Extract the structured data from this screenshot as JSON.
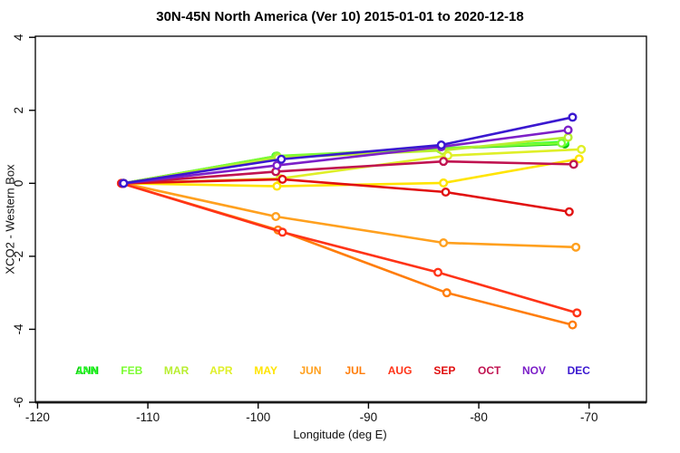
{
  "chart_data": {
    "type": "line",
    "title": "30N-45N North America (Ver 10)   2015-01-01 to 2020-12-18",
    "xlabel": "Longitude (deg E)",
    "ylabel": "XCO2 - Western Box",
    "xlim": [
      -120.2,
      -64.8
    ],
    "ylim": [
      -6,
      4.03
    ],
    "x_ticks": [
      -120,
      -110,
      -100,
      -90,
      -80,
      -70
    ],
    "y_ticks": [
      4,
      2,
      0,
      -2,
      -4,
      -6
    ],
    "grid": false,
    "legend_position": "inside-bottom",
    "marker": "open-circle",
    "series": [
      {
        "name": "ANN",
        "color": "#00C300",
        "points": [
          {
            "x": -112.2,
            "y": 0
          },
          {
            "x": -98.4,
            "y": 0.74
          },
          {
            "x": -83.5,
            "y": 0.95
          },
          {
            "x": -72.2,
            "y": 1.08
          }
        ]
      },
      {
        "name": "JAN",
        "color": "#30FF30",
        "points": [
          {
            "x": -112.2,
            "y": 0
          },
          {
            "x": -98.4,
            "y": 0.73
          },
          {
            "x": -83.5,
            "y": 0.94
          },
          {
            "x": -72.2,
            "y": 1.14
          }
        ]
      },
      {
        "name": "FEB",
        "color": "#7CFC33",
        "points": [
          {
            "x": -112.2,
            "y": 0
          },
          {
            "x": -98.3,
            "y": 0.75
          },
          {
            "x": -83.6,
            "y": 0.96
          },
          {
            "x": -72.5,
            "y": 1.1
          }
        ]
      },
      {
        "name": "MAR",
        "color": "#B8EE30",
        "points": [
          {
            "x": -112.2,
            "y": 0
          },
          {
            "x": -98.2,
            "y": 0.7
          },
          {
            "x": -83.3,
            "y": 0.9
          },
          {
            "x": -71.9,
            "y": 1.26
          }
        ]
      },
      {
        "name": "APR",
        "color": "#DFEF28",
        "points": [
          {
            "x": -112.2,
            "y": 0
          },
          {
            "x": -98.0,
            "y": 0.13
          },
          {
            "x": -82.8,
            "y": 0.76
          },
          {
            "x": -70.7,
            "y": 0.93
          }
        ]
      },
      {
        "name": "MAY",
        "color": "#FFE400",
        "points": [
          {
            "x": -112.2,
            "y": 0
          },
          {
            "x": -98.3,
            "y": -0.08
          },
          {
            "x": -83.2,
            "y": 0.01
          },
          {
            "x": -70.9,
            "y": 0.67
          }
        ]
      },
      {
        "name": "JUN",
        "color": "#FFA01E",
        "points": [
          {
            "x": -112.2,
            "y": 0
          },
          {
            "x": -98.4,
            "y": -0.91
          },
          {
            "x": -83.2,
            "y": -1.63
          },
          {
            "x": -71.2,
            "y": -1.75
          }
        ]
      },
      {
        "name": "JUL",
        "color": "#FF7D0A",
        "points": [
          {
            "x": -112.4,
            "y": 0
          },
          {
            "x": -98.2,
            "y": -1.28
          },
          {
            "x": -82.9,
            "y": -3.0
          },
          {
            "x": -71.5,
            "y": -3.88
          }
        ]
      },
      {
        "name": "AUG",
        "color": "#FF3317",
        "points": [
          {
            "x": -112.4,
            "y": 0
          },
          {
            "x": -97.8,
            "y": -1.34
          },
          {
            "x": -83.7,
            "y": -2.44
          },
          {
            "x": -71.1,
            "y": -3.55
          }
        ]
      },
      {
        "name": "SEP",
        "color": "#E11010",
        "points": [
          {
            "x": -112.3,
            "y": 0
          },
          {
            "x": -97.8,
            "y": 0.11
          },
          {
            "x": -83.0,
            "y": -0.24
          },
          {
            "x": -71.8,
            "y": -0.78
          }
        ]
      },
      {
        "name": "OCT",
        "color": "#C01350",
        "points": [
          {
            "x": -112.3,
            "y": 0
          },
          {
            "x": -98.4,
            "y": 0.32
          },
          {
            "x": -83.2,
            "y": 0.6
          },
          {
            "x": -71.4,
            "y": 0.52
          }
        ]
      },
      {
        "name": "NOV",
        "color": "#7C1FC8",
        "points": [
          {
            "x": -112.2,
            "y": 0
          },
          {
            "x": -98.3,
            "y": 0.49
          },
          {
            "x": -83.4,
            "y": 1.0
          },
          {
            "x": -71.9,
            "y": 1.46
          }
        ]
      },
      {
        "name": "DEC",
        "color": "#3A18D0",
        "points": [
          {
            "x": -112.2,
            "y": 0
          },
          {
            "x": -97.9,
            "y": 0.66
          },
          {
            "x": -83.4,
            "y": 1.05
          },
          {
            "x": -71.5,
            "y": 1.81
          }
        ]
      }
    ]
  }
}
